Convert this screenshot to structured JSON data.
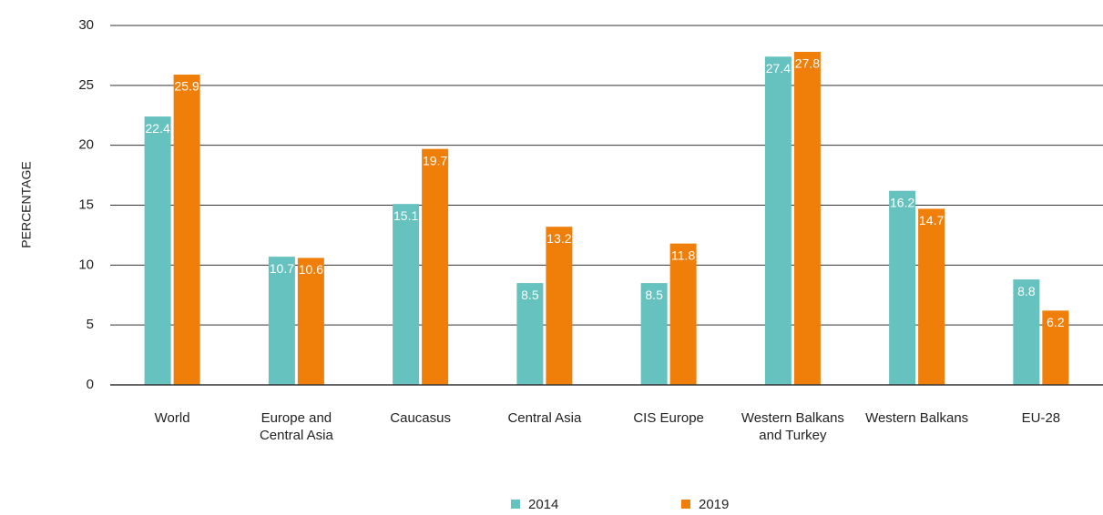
{
  "chart_data": {
    "type": "bar",
    "y_label": "PERCENTAGE",
    "categories": [
      "World",
      "Europe and\nCentral Asia",
      "Caucasus",
      "Central Asia",
      "CIS Europe",
      "Western Balkans\nand Turkey",
      "Western Balkans",
      "EU-28"
    ],
    "series": [
      {
        "name": "2014",
        "color": "#66c2bf",
        "values": [
          22.4,
          10.7,
          15.1,
          8.5,
          8.5,
          27.4,
          16.2,
          8.8
        ]
      },
      {
        "name": "2019",
        "color": "#f07f0a",
        "values": [
          25.9,
          10.6,
          19.7,
          13.2,
          11.8,
          27.8,
          14.7,
          6.2
        ]
      }
    ],
    "ylim": [
      0,
      30
    ],
    "yticks": [
      0,
      5,
      10,
      15,
      20,
      25,
      30
    ],
    "grid": true,
    "legend": "bottom"
  }
}
